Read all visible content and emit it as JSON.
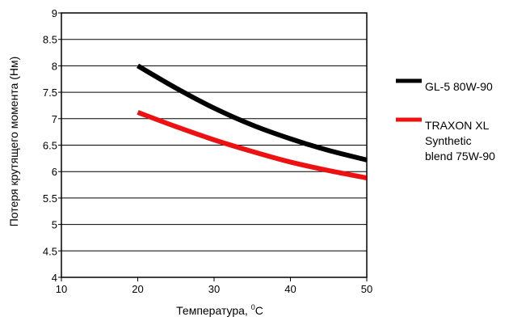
{
  "chart_data": {
    "type": "line",
    "xlabel": "Температура, ",
    "xlabel_unit_sup": "0",
    "xlabel_unit": "C",
    "ylabel": "Потеря крутящего  момента (Нм)",
    "xlim": [
      10,
      50
    ],
    "ylim": [
      4,
      9
    ],
    "x_ticks": [
      10,
      20,
      30,
      40,
      50
    ],
    "y_ticks": [
      4,
      4.5,
      5,
      5.5,
      6,
      6.5,
      7,
      7.5,
      8,
      8.5,
      9
    ],
    "grid": "horizontal",
    "legend_position": "right",
    "series": [
      {
        "name": "GL-5 80W-90",
        "legend_lines": [
          "GL-5 80W-90"
        ],
        "color": "#000000",
        "x": [
          20,
          25,
          30,
          35,
          40,
          45,
          50
        ],
        "y": [
          8.0,
          7.58,
          7.2,
          6.88,
          6.62,
          6.4,
          6.22
        ]
      },
      {
        "name": "TRAXON XL Synthetic blend 75W-90",
        "legend_lines": [
          "TRAXON XL",
          "Synthetic",
          "blend 75W-90"
        ],
        "color": "#ee1111",
        "x": [
          20,
          25,
          30,
          35,
          40,
          45,
          50
        ],
        "y": [
          7.12,
          6.85,
          6.6,
          6.38,
          6.18,
          6.02,
          5.88
        ]
      }
    ]
  }
}
